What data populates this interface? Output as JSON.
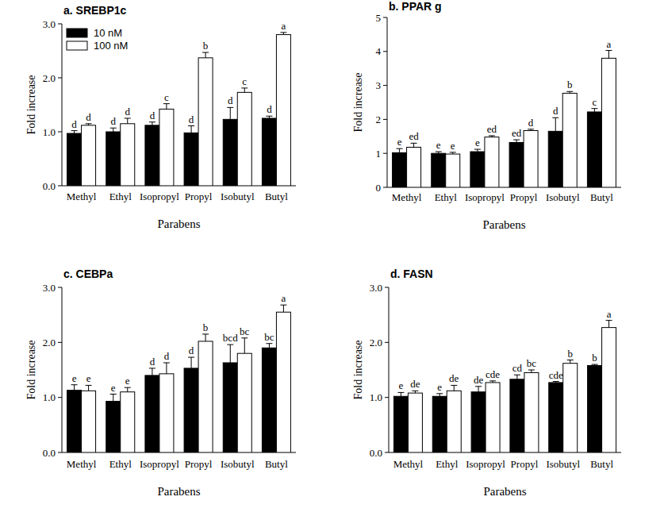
{
  "chart_data": [
    {
      "type": "bar",
      "title": "a. SREBP1c",
      "x_label": "Parabens",
      "y_label": "Fold increase",
      "categories": [
        "Methyl",
        "Ethyl",
        "Isopropyl",
        "Propyl",
        "Isobutyl",
        "Butyl"
      ],
      "ylim": [
        0,
        3
      ],
      "yticks": [
        {
          "value": 0,
          "label": "0.0"
        },
        {
          "value": 1,
          "label": "1.0"
        },
        {
          "value": 2,
          "label": "2.0"
        },
        {
          "value": 3,
          "label": "3.0"
        }
      ],
      "legend": "upper left",
      "series": [
        {
          "name": "10 nM",
          "color": "#000000",
          "values": [
            0.97,
            1.0,
            1.12,
            0.98,
            1.23,
            1.25
          ],
          "errors": [
            0.05,
            0.07,
            0.06,
            0.13,
            0.22,
            0.04
          ],
          "letters": [
            "d",
            "d",
            "d",
            "d",
            "d",
            "d"
          ]
        },
        {
          "name": "100 nM",
          "color": "#ffffff",
          "values": [
            1.12,
            1.15,
            1.42,
            2.37,
            1.73,
            2.8
          ],
          "errors": [
            0.03,
            0.1,
            0.1,
            0.1,
            0.08,
            0.04
          ],
          "letters": [
            "d",
            "d",
            "c",
            "b",
            "c",
            "a"
          ]
        }
      ]
    },
    {
      "type": "bar",
      "title": "b. PPAR g",
      "x_label": "Parabens",
      "y_label": "Fold increase",
      "categories": [
        "Methyl",
        "Ethyl",
        "Isopropyl",
        "Propyl",
        "Isobutyl",
        "Butyl"
      ],
      "ylim": [
        0,
        5
      ],
      "yticks": [
        0,
        1,
        2,
        3,
        4,
        5
      ],
      "series": [
        {
          "name": "10 nM",
          "color": "#000000",
          "values": [
            1.02,
            1.0,
            1.05,
            1.32,
            1.65,
            2.22
          ],
          "errors": [
            0.12,
            0.05,
            0.07,
            0.08,
            0.4,
            0.1
          ],
          "letters": [
            "e",
            "e",
            "e",
            "ed",
            "d",
            "c"
          ]
        },
        {
          "name": "100 nM",
          "color": "#ffffff",
          "values": [
            1.18,
            0.98,
            1.48,
            1.67,
            2.77,
            3.8
          ],
          "errors": [
            0.12,
            0.05,
            0.04,
            0.04,
            0.05,
            0.23
          ],
          "letters": [
            "ed",
            "e",
            "ed",
            "d",
            "b",
            "a"
          ]
        }
      ]
    },
    {
      "type": "bar",
      "title": "c. CEBPa",
      "x_label": "Parabens",
      "y_label": "Fold increase",
      "categories": [
        "Methyl",
        "Ethyl",
        "Isopropyl",
        "Propyl",
        "Isobutyl",
        "Butyl"
      ],
      "ylim": [
        0,
        3
      ],
      "yticks": [
        {
          "value": 0,
          "label": "0.0"
        },
        {
          "value": 1,
          "label": "1.0"
        },
        {
          "value": 2,
          "label": "2.0"
        },
        {
          "value": 3,
          "label": "3.0"
        }
      ],
      "series": [
        {
          "name": "10 nM",
          "color": "#000000",
          "values": [
            1.13,
            0.93,
            1.4,
            1.53,
            1.63,
            1.9
          ],
          "errors": [
            0.1,
            0.13,
            0.13,
            0.2,
            0.33,
            0.08
          ],
          "letters": [
            "e",
            "e",
            "d",
            "d",
            "bcd",
            "bc"
          ]
        },
        {
          "name": "100 nM",
          "color": "#ffffff",
          "values": [
            1.12,
            1.1,
            1.43,
            2.02,
            1.8,
            2.55
          ],
          "errors": [
            0.1,
            0.08,
            0.2,
            0.13,
            0.28,
            0.13
          ],
          "letters": [
            "e",
            "e",
            "d",
            "b",
            "bc",
            "a"
          ]
        }
      ]
    },
    {
      "type": "bar",
      "title": "d. FASN",
      "x_label": "Parabens",
      "y_label": "Fold increase",
      "categories": [
        "Methyl",
        "Ethyl",
        "Isopropyl",
        "Propyl",
        "Isobutyl",
        "Butyl"
      ],
      "ylim": [
        0,
        3
      ],
      "yticks": [
        {
          "value": 0,
          "label": "0.0"
        },
        {
          "value": 1,
          "label": "1.0"
        },
        {
          "value": 2,
          "label": "2.0"
        },
        {
          "value": 3,
          "label": "3.0"
        }
      ],
      "series": [
        {
          "name": "10 nM",
          "color": "#000000",
          "values": [
            1.02,
            1.02,
            1.1,
            1.33,
            1.27,
            1.58
          ],
          "errors": [
            0.07,
            0.05,
            0.1,
            0.08,
            0.02,
            0.02
          ],
          "letters": [
            "e",
            "e",
            "de",
            "cd",
            "cde",
            "b"
          ]
        },
        {
          "name": "100 nM",
          "color": "#ffffff",
          "values": [
            1.08,
            1.12,
            1.27,
            1.45,
            1.62,
            2.27
          ],
          "errors": [
            0.04,
            0.1,
            0.03,
            0.05,
            0.06,
            0.13
          ],
          "letters": [
            "de",
            "de",
            "cde",
            "bc",
            "b",
            "a"
          ]
        }
      ]
    }
  ]
}
